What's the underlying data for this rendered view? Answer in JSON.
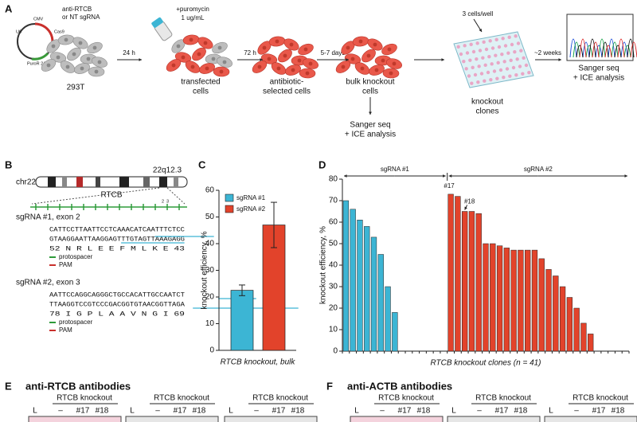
{
  "panel_a": {
    "letter": "A",
    "plasmid": [
      "CMV",
      "U6",
      "Cas9",
      "PuroR 2A"
    ],
    "guide_label": [
      "anti-RTCB",
      "or NT sgRNA"
    ],
    "cell_line": "293T",
    "step1": {
      "arrow": "24 h",
      "note": [
        "+puromycin",
        "1 ug/mL"
      ],
      "label": [
        "transfected",
        "cells"
      ]
    },
    "step2": {
      "arrow": "72 h",
      "label": [
        "antibiotic-",
        "selected cells"
      ]
    },
    "step3": {
      "arrow": "5-7 days",
      "label": [
        "bulk knockout",
        "cells"
      ],
      "below": [
        "Sanger seq",
        "+ ICE analysis"
      ]
    },
    "step4": {
      "note": "3 cells/well",
      "label": [
        "knockout",
        "clones"
      ]
    },
    "step5": {
      "arrow": "~2 weeks",
      "label": [
        "Sanger seq",
        "+ ICE analysis"
      ]
    }
  },
  "panel_b": {
    "letter": "B",
    "chromosome": "chr22",
    "band": "22q12.3",
    "gene": "RTCB",
    "exon_marks": [
      "2",
      "3"
    ],
    "guides": [
      {
        "title": "sgRNA #1, exon 2",
        "top": "CATTCCTTAATTCCTCAAACATCAATTTCTCC",
        "bottom": "GTAAGGAATTAAGGAGTTTGTAGTTAAAGAGG",
        "aa": "52 N  R  L  E  E  F  M  L  K  E 43"
      },
      {
        "title": "sgRNA #2, exon 3",
        "top": "AATTCCAGGCAGGGCTGCCACATTGCCAATCT",
        "bottom": "TTAAGGTCCGTCCCGACGGTGTAACGGTTAGA",
        "aa": "78 I  G  P  L  A  A  V  N  G  I 69"
      }
    ],
    "legend": [
      "protospacer",
      "PAM"
    ]
  },
  "panel_c": {
    "letter": "C"
  },
  "panel_d": {
    "letter": "D",
    "annotations": [
      "#17",
      "#18"
    ]
  },
  "chart_data": [
    {
      "type": "bar",
      "ylabel": "knockout efficiency, %",
      "xlabel": "RTCB knockout, bulk",
      "series": [
        {
          "name": "sgRNA #1",
          "color": "#3cb5d4",
          "values": [
            22.5
          ],
          "errors": [
            2
          ]
        },
        {
          "name": "sgRNA #2",
          "color": "#e2432b",
          "values": [
            47
          ],
          "errors": [
            8.5
          ]
        }
      ],
      "ylim": [
        0,
        60
      ],
      "yticks": [
        0,
        10,
        20,
        30,
        40,
        50,
        60
      ]
    },
    {
      "type": "bar",
      "ylabel": "knockout efficiency, %",
      "xlabel": "RTCB knockout clones (n = 41)",
      "series": [
        {
          "name": "sgRNA #1",
          "color": "#3cb5d4",
          "values": [
            70,
            66,
            61,
            58,
            53,
            45,
            30,
            18,
            0,
            0,
            0,
            0,
            0,
            0,
            0
          ]
        },
        {
          "name": "sgRNA #2",
          "color": "#e2432b",
          "values": [
            73,
            72,
            65,
            65,
            64,
            50,
            50,
            49,
            48,
            47,
            47,
            47,
            47,
            43,
            38,
            35,
            30,
            25,
            20,
            13,
            8,
            0,
            0,
            0,
            0,
            0
          ]
        }
      ],
      "ylim": [
        0,
        80
      ],
      "yticks": [
        0,
        10,
        20,
        30,
        40,
        50,
        60,
        70,
        80
      ]
    }
  ],
  "panel_e": {
    "letter": "E",
    "title": "anti-RTCB antibodies",
    "groups": [
      {
        "title": "RTCB knockout",
        "lanes": [
          "L",
          "–",
          "#17",
          "#18"
        ]
      },
      {
        "title": "RTCB knockout",
        "lanes": [
          "L",
          "–",
          "#17",
          "#18"
        ]
      },
      {
        "title": "RTCB knockout",
        "lanes": [
          "L",
          "–",
          "#17",
          "#18"
        ]
      }
    ]
  },
  "panel_f": {
    "letter": "F",
    "title": "anti-ACTB antibodies",
    "groups": [
      {
        "title": "RTCB knockout",
        "lanes": [
          "L",
          "–",
          "#17",
          "#18"
        ]
      },
      {
        "title": "RTCB knockout",
        "lanes": [
          "L",
          "–",
          "#17",
          "#18"
        ]
      },
      {
        "title": "RTCB knockout",
        "lanes": [
          "L",
          "–",
          "#17",
          "#18"
        ]
      }
    ]
  }
}
